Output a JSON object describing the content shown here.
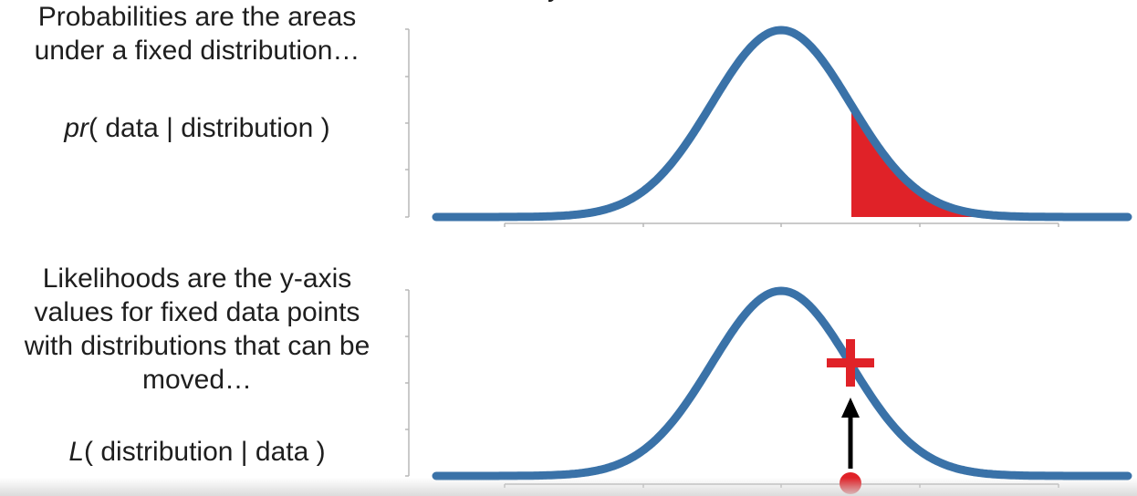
{
  "top_fragment": "y",
  "probability": {
    "caption_line1": "Probabilities are the areas",
    "caption_line2": "under a fixed distribution…",
    "formula_prefix": "pr",
    "formula_rest": "( data | distribution )"
  },
  "likelihood": {
    "caption_line1": "Likelihoods are the y-axis",
    "caption_line2": "values for fixed data points",
    "caption_line3": "with distributions that can be",
    "caption_line4": "moved…",
    "formula_prefix": "L",
    "formula_rest": "( distribution | data )"
  },
  "colors": {
    "curve": "#3a72a8",
    "highlight": "#e02228",
    "axis": "#b8b8b8",
    "arrow": "#000000"
  },
  "icons": [
    "plus-marker-icon",
    "arrow-up-icon",
    "data-point-dot-icon"
  ]
}
